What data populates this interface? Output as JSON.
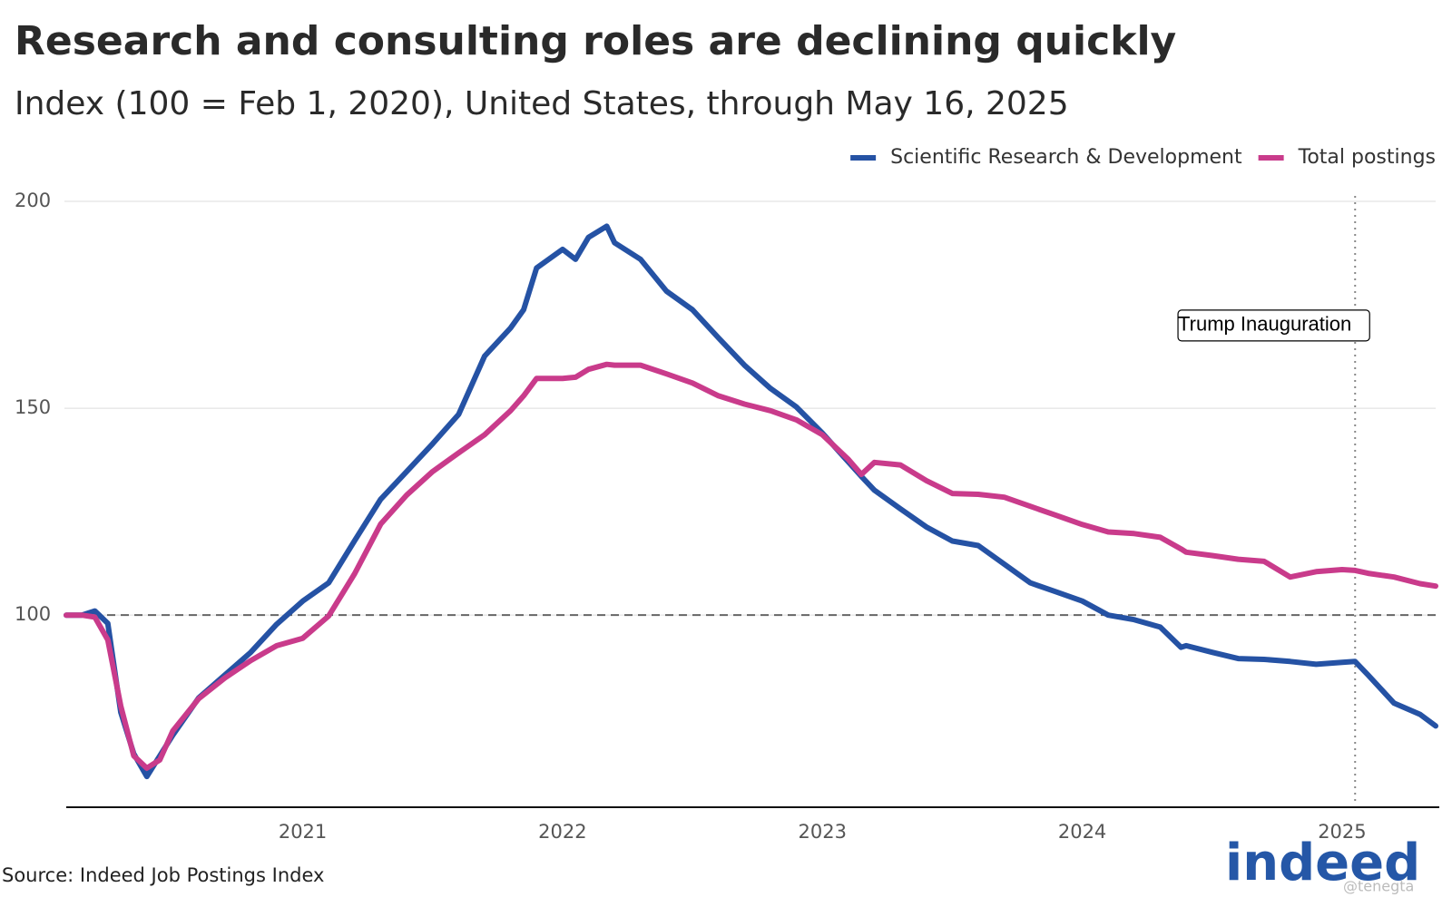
{
  "chart_data": {
    "type": "line",
    "title": "Research and consulting roles are declining quickly",
    "subtitle": "Index (100 = Feb 1, 2020), United States, through May 16, 2025",
    "source": "Source: Indeed Job Postings Index",
    "logo": "indeed",
    "watermark": "@tenegta",
    "legend": "top-right",
    "grid": true,
    "reference_line": 100,
    "annotation": {
      "text": "Trump Inauguration",
      "x": 2025.05
    },
    "xlim": [
      2020.09,
      2025.36
    ],
    "xticks": [
      2021,
      2022,
      2023,
      2024,
      2025
    ],
    "ylim": [
      54,
      200
    ],
    "yticks": [
      100,
      150,
      200
    ],
    "x": [
      2020.09,
      2020.15,
      2020.2,
      2020.25,
      2020.3,
      2020.35,
      2020.4,
      2020.45,
      2020.5,
      2020.6,
      2020.7,
      2020.8,
      2020.9,
      2021.0,
      2021.1,
      2021.2,
      2021.3,
      2021.4,
      2021.5,
      2021.6,
      2021.7,
      2021.8,
      2021.85,
      2021.9,
      2022.0,
      2022.05,
      2022.1,
      2022.17,
      2022.2,
      2022.3,
      2022.4,
      2022.5,
      2022.6,
      2022.7,
      2022.8,
      2022.9,
      2023.0,
      2023.1,
      2023.15,
      2023.2,
      2023.3,
      2023.4,
      2023.5,
      2023.6,
      2023.7,
      2023.8,
      2023.9,
      2024.0,
      2024.1,
      2024.2,
      2024.3,
      2024.38,
      2024.4,
      2024.5,
      2024.6,
      2024.7,
      2024.8,
      2024.9,
      2025.0,
      2025.05,
      2025.1,
      2025.2,
      2025.3,
      2025.36
    ],
    "series": [
      {
        "name": "Scientific Research & Development",
        "color": "#2552a4",
        "values": [
          100,
          100,
          101,
          98,
          76.5,
          66.5,
          61,
          66,
          71,
          80,
          85.5,
          91,
          97.8,
          103.4,
          107.8,
          118,
          128,
          134.7,
          141.4,
          148.5,
          162.6,
          169.4,
          173.8,
          183.9,
          188.4,
          186,
          191.3,
          194,
          190,
          186,
          178.3,
          173.8,
          167,
          160.4,
          154.8,
          150.3,
          144,
          137,
          133.5,
          130.2,
          125.7,
          121.3,
          117.9,
          116.8,
          112.3,
          107.8,
          105.6,
          103.4,
          100,
          98.9,
          97.1,
          92.2,
          92.6,
          91,
          89.5,
          89.3,
          88.8,
          88.1,
          88.6,
          88.8,
          85.5,
          78.7,
          76,
          73.2
        ]
      },
      {
        "name": "Total postings",
        "color": "#c93b8b",
        "values": [
          100,
          100,
          99.5,
          94,
          78,
          66,
          63,
          65,
          72,
          79.8,
          84.8,
          89,
          92.6,
          94.4,
          99.8,
          110,
          122,
          129,
          134.7,
          139.2,
          143.6,
          149.4,
          153,
          157.2,
          157.2,
          157.5,
          159.4,
          160.6,
          160.4,
          160.4,
          158.3,
          156.1,
          153,
          151,
          149.4,
          147.2,
          143.6,
          137.6,
          134,
          136.9,
          136.3,
          132.5,
          129.4,
          129.2,
          128.5,
          126.3,
          124.1,
          121.9,
          120.1,
          119.7,
          118.8,
          116,
          115.2,
          114.4,
          113.5,
          113,
          109.2,
          110.5,
          111,
          110.8,
          110.1,
          109.2,
          107.6,
          107
        ]
      }
    ]
  }
}
